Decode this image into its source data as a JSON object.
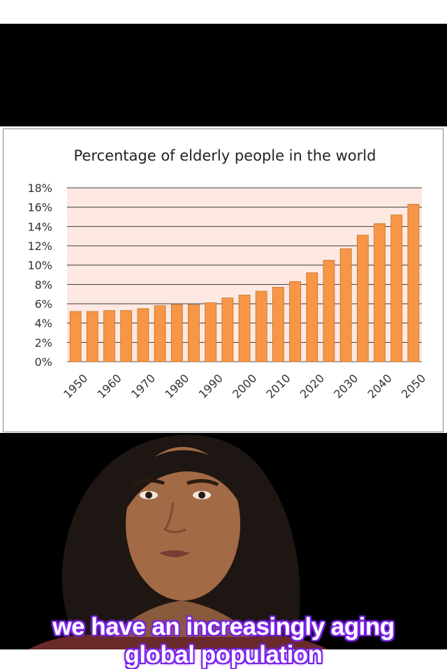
{
  "caption": {
    "line1": "we have an increasingly aging",
    "line2": "global population"
  },
  "colors": {
    "bar": "#f79646",
    "bar_edge": "#c0702a",
    "plot_bg": "#fde9e1",
    "caption_glow": "#8b2cff"
  },
  "chart_data": {
    "type": "bar",
    "title": "Percentage of elderly people in the world",
    "xlabel": "",
    "ylabel": "",
    "ylim": [
      0,
      18
    ],
    "yticks": [
      "0%",
      "2%",
      "4%",
      "6%",
      "8%",
      "10%",
      "12%",
      "14%",
      "16%",
      "18%"
    ],
    "categories": [
      "1950",
      "1955",
      "1960",
      "1965",
      "1970",
      "1975",
      "1980",
      "1985",
      "1990",
      "1995",
      "2000",
      "2005",
      "2010",
      "2015",
      "2020",
      "2025",
      "2030",
      "2035",
      "2040",
      "2045",
      "2050"
    ],
    "xtick_labels": [
      "1950",
      "1960",
      "1970",
      "1980",
      "1990",
      "2000",
      "2010",
      "2020",
      "2030",
      "2040",
      "2050"
    ],
    "values": [
      5.2,
      5.2,
      5.3,
      5.3,
      5.5,
      5.8,
      5.9,
      5.9,
      6.1,
      6.6,
      6.9,
      7.3,
      7.7,
      8.3,
      9.2,
      10.5,
      11.7,
      13.1,
      14.3,
      15.2,
      16.3
    ],
    "grid": true,
    "legend": "none"
  }
}
